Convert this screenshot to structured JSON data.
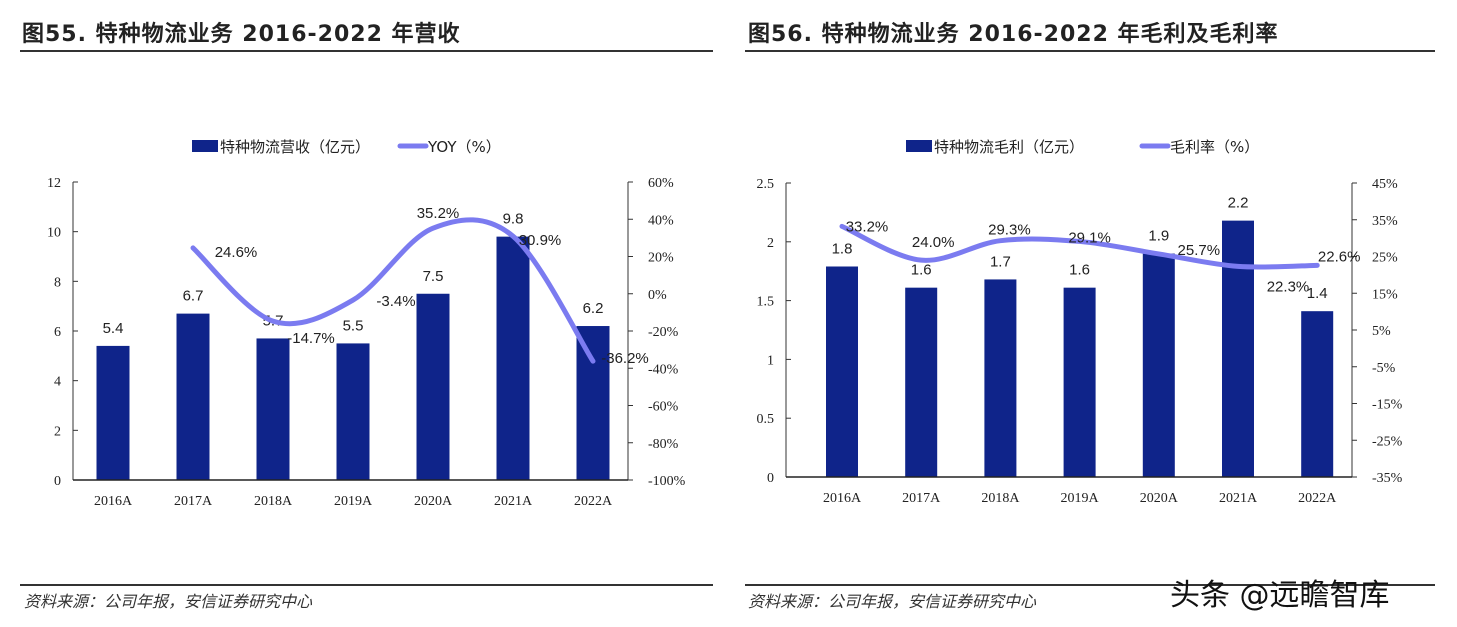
{
  "left": {
    "title": "图55. 特种物流业务 2016-2022 年营收",
    "source": "资料来源：公司年报，安信证券研究中心"
  },
  "right": {
    "title": "图56. 特种物流业务 2016-2022 年毛利及毛利率",
    "source": "资料来源：公司年报，安信证券研究中心"
  },
  "watermark": "头条 @远瞻智库",
  "chart_data": [
    {
      "type": "bar+line",
      "categories": [
        "2016A",
        "2017A",
        "2018A",
        "2019A",
        "2020A",
        "2021A",
        "2022A"
      ],
      "bar_series": {
        "name": "特种物流营收（亿元）",
        "values": [
          5.4,
          6.7,
          5.7,
          5.5,
          7.5,
          9.8,
          6.2
        ],
        "labels": [
          "5.4",
          "6.7",
          "5.7",
          "5.5",
          "7.5",
          "9.8",
          "6.2"
        ],
        "color": "#0f248a"
      },
      "line_series": {
        "name": "YOY（%）",
        "values": [
          null,
          24.6,
          -14.7,
          -3.4,
          35.2,
          30.9,
          -36.2
        ],
        "labels": [
          "",
          "24.6%",
          "-14.7%",
          "-3.4%",
          "35.2%",
          "30.9%",
          "-36.2%"
        ],
        "color": "#7b7bf0"
      },
      "y_left": {
        "range": [
          0,
          12
        ],
        "ticks": [
          "0",
          "2",
          "4",
          "6",
          "8",
          "10",
          "12"
        ],
        "tick_values": [
          0,
          2,
          4,
          6,
          8,
          10,
          12
        ]
      },
      "y_right": {
        "range": [
          -100,
          60
        ],
        "ticks": [
          "-100%",
          "-80%",
          "-60%",
          "-40%",
          "-20%",
          "0%",
          "20%",
          "40%",
          "60%"
        ],
        "tick_values": [
          -100,
          -80,
          -60,
          -40,
          -20,
          0,
          20,
          40,
          60
        ]
      },
      "legend": "top",
      "grid": false
    },
    {
      "type": "bar+line",
      "categories": [
        "2016A",
        "2017A",
        "2018A",
        "2019A",
        "2020A",
        "2021A",
        "2022A"
      ],
      "bar_series": {
        "name": "特种物流毛利（亿元）",
        "values": [
          1.79,
          1.61,
          1.68,
          1.61,
          1.9,
          2.18,
          1.41
        ],
        "labels": [
          "1.8",
          "1.6",
          "1.7",
          "1.6",
          "1.9",
          "2.2",
          "1.4"
        ],
        "color": "#0f248a"
      },
      "line_series": {
        "name": "毛利率（%）",
        "values": [
          33.2,
          24.0,
          29.3,
          29.1,
          25.7,
          22.3,
          22.6
        ],
        "labels": [
          "33.2%",
          "24.0%",
          "29.3%",
          "29.1%",
          "25.7%",
          "22.3%",
          "22.6%"
        ],
        "color": "#7b7bf0"
      },
      "y_left": {
        "range": [
          0,
          2.5
        ],
        "ticks": [
          "0",
          "0.5",
          "1",
          "1.5",
          "2",
          "2.5"
        ],
        "tick_values": [
          0,
          0.5,
          1,
          1.5,
          2,
          2.5
        ]
      },
      "y_right": {
        "range": [
          -35,
          45
        ],
        "ticks": [
          "-35%",
          "-25%",
          "-15%",
          "-5%",
          "5%",
          "15%",
          "25%",
          "35%",
          "45%"
        ],
        "tick_values": [
          -35,
          -25,
          -15,
          -5,
          5,
          15,
          25,
          35,
          45
        ]
      },
      "legend": "top",
      "grid": false
    }
  ]
}
